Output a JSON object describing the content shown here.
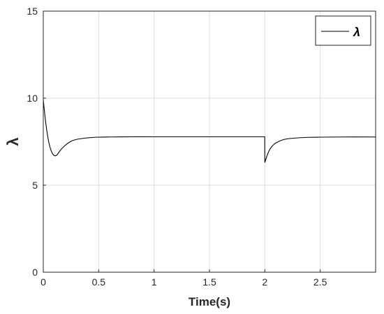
{
  "chart_data": {
    "type": "line",
    "title": "",
    "xlabel": "Time(s)",
    "ylabel": "λ",
    "xlim": [
      0,
      3
    ],
    "ylim": [
      0,
      15
    ],
    "x_ticks": [
      0,
      0.5,
      1,
      1.5,
      2,
      2.5
    ],
    "x_tick_labels": [
      "0",
      "0.5",
      "1",
      "1.5",
      "2",
      "2.5"
    ],
    "y_ticks": [
      0,
      5,
      10,
      15
    ],
    "y_tick_labels": [
      "0",
      "5",
      "10",
      "15"
    ],
    "grid": true,
    "legend_position": "top-right",
    "series": [
      {
        "name": "λ",
        "color": "#000000",
        "x": [
          0,
          0.02,
          0.04,
          0.06,
          0.08,
          0.1,
          0.12,
          0.14,
          0.16,
          0.2,
          0.25,
          0.3,
          0.4,
          0.5,
          0.6,
          0.8,
          1.0,
          1.5,
          1.999,
          2.0,
          2.02,
          2.04,
          2.06,
          2.08,
          2.1,
          2.15,
          2.2,
          2.3,
          2.4,
          2.5,
          2.7,
          3.0
        ],
        "y": [
          9.9,
          8.7,
          7.8,
          7.2,
          6.85,
          6.7,
          6.72,
          6.88,
          7.05,
          7.3,
          7.52,
          7.63,
          7.72,
          7.76,
          7.77,
          7.78,
          7.78,
          7.78,
          7.78,
          6.3,
          6.7,
          7.0,
          7.2,
          7.33,
          7.43,
          7.58,
          7.66,
          7.72,
          7.75,
          7.76,
          7.77,
          7.77
        ]
      }
    ]
  },
  "colors": {
    "axis": "#262626",
    "grid": "#dfdfdf",
    "line": "#000000",
    "background": "#ffffff"
  }
}
